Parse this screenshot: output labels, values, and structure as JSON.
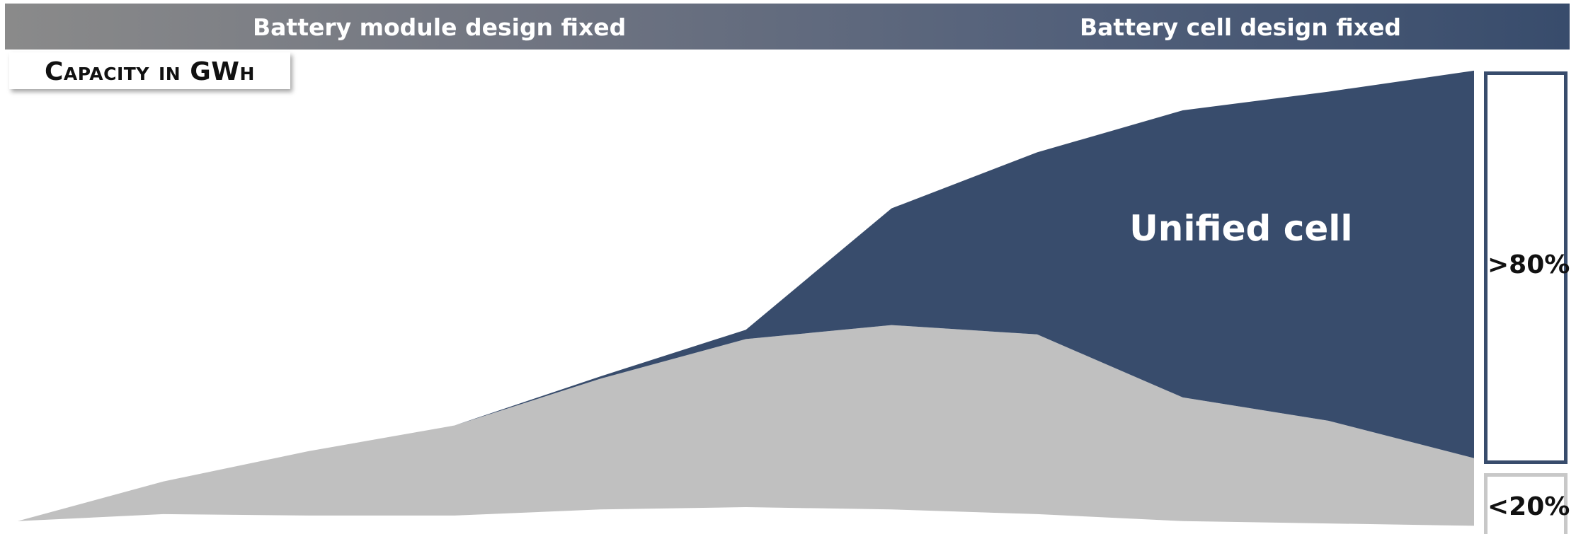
{
  "banner": {
    "left_label": "Battery module design fixed",
    "right_label": "Battery cell design fixed"
  },
  "title": "Capacity in GWh",
  "colors": {
    "unified_cell": "#384c6c",
    "other": "#c0c0c0",
    "banner_start": "#8a8a8a",
    "banner_end": "#384c6c"
  },
  "shares": {
    "unified": ">80%",
    "other": "<20%"
  },
  "chart_data": {
    "type": "area",
    "stacked": true,
    "x": [
      0,
      1,
      2,
      3,
      4,
      5,
      6,
      7,
      8,
      9,
      10
    ],
    "ylim": [
      0,
      100
    ],
    "series": [
      {
        "name": "",
        "color": "#c0c0c0",
        "bottom": [
          2,
          3.5,
          3.2,
          3.2,
          4.5,
          5,
          4.5,
          3.5,
          2,
          1.5,
          1
        ],
        "top": [
          2,
          10.5,
          17,
          22.5,
          32.5,
          41,
          44,
          42,
          28.5,
          23.5,
          15.5
        ]
      },
      {
        "name": "Unified cell",
        "color": "#384c6c",
        "bottom": [
          2,
          10.5,
          17,
          22.5,
          32.5,
          41,
          44,
          42,
          28.5,
          23.5,
          15.5
        ],
        "top": [
          2,
          10.5,
          17,
          22.5,
          33,
          43,
          69,
          81,
          90,
          94,
          98.5
        ]
      }
    ],
    "annotations": [
      "Unified cell"
    ]
  }
}
